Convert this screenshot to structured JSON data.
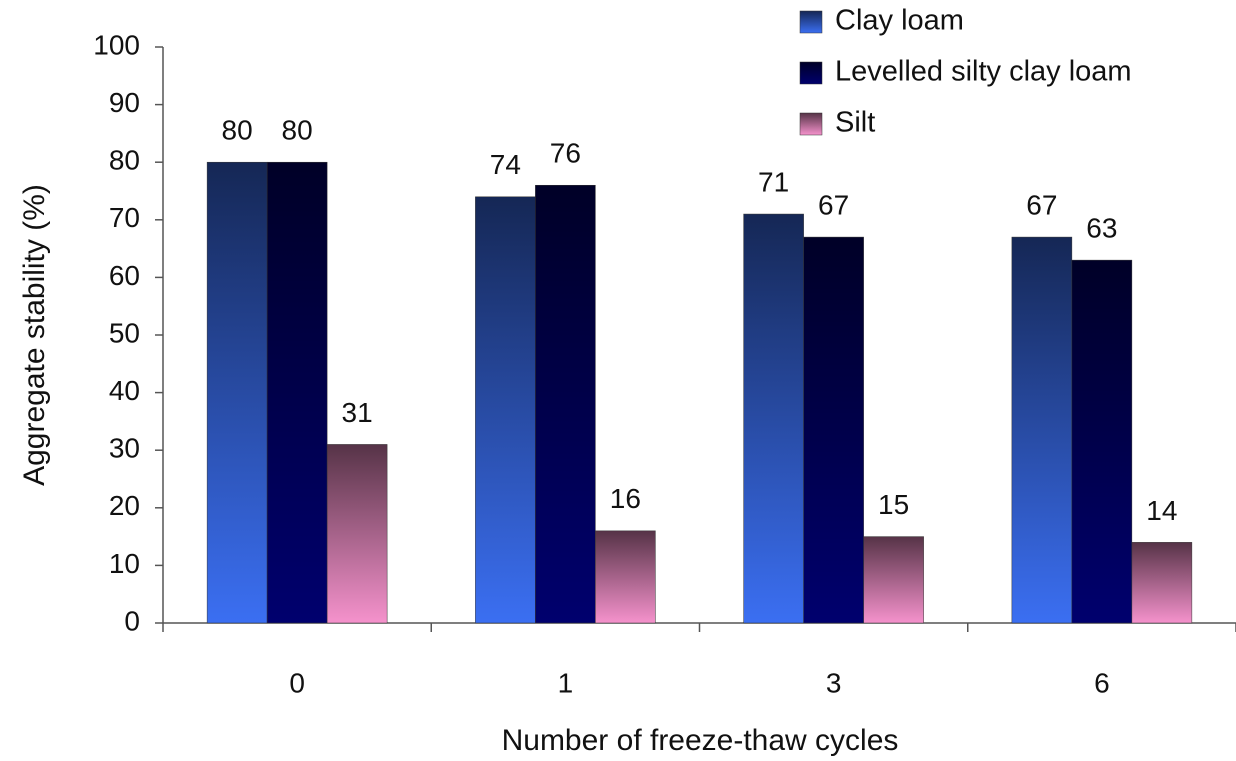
{
  "chart_data": {
    "type": "bar",
    "x_label": "Number of freeze-thaw cycles",
    "y_label": "Aggregate stability (%)",
    "categories": [
      "0",
      "1",
      "3",
      "6"
    ],
    "series": [
      {
        "name": "Clay loam",
        "color": "#3b6ff2",
        "values": [
          80,
          74,
          71,
          67
        ]
      },
      {
        "name": "Levelled silty clay loam",
        "color": "#00006e",
        "values": [
          80,
          76,
          67,
          63
        ]
      },
      {
        "name": "Silt",
        "color": "#f592cc",
        "values": [
          31,
          16,
          15,
          14
        ]
      }
    ],
    "ylim": [
      0,
      100
    ],
    "yticks": [
      0,
      10,
      20,
      30,
      40,
      50,
      60,
      70,
      80,
      90,
      100
    ],
    "grid": false,
    "legend": "top-right"
  }
}
